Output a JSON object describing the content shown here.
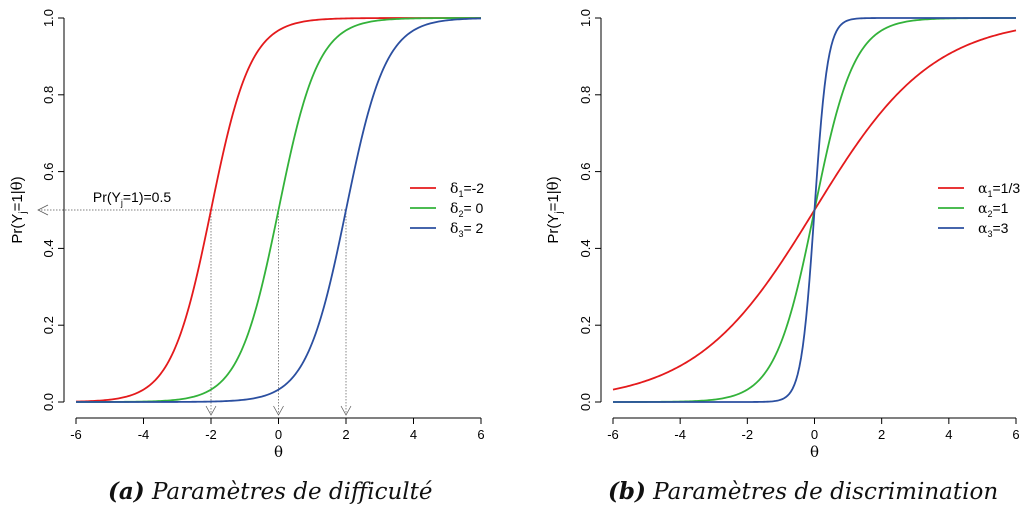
{
  "panels": [
    {
      "id": "a",
      "caption_label": "(a)",
      "caption_text": "Paramètres de difficulté",
      "annotation": "Pr(Y",
      "annotation_sub": "j",
      "annotation_tail": "=1)=0.5"
    },
    {
      "id": "b",
      "caption_label": "(b)",
      "caption_text": "Paramètres de discrimination"
    }
  ],
  "chart_data": [
    {
      "type": "line",
      "function": "logistic",
      "xlabel": "θ",
      "ylabel": "Pr(Yj=1|θ)",
      "xlim": [
        -6,
        6
      ],
      "ylim": [
        0,
        1
      ],
      "xticks": [
        -6,
        -4,
        -2,
        0,
        2,
        4,
        6
      ],
      "yticks": [
        "0.0",
        "0.2",
        "0.4",
        "0.6",
        "0.8",
        "1.0"
      ],
      "grid": false,
      "legend_position": "right",
      "reference_y": 0.5,
      "reference_x": [
        -2,
        0,
        2
      ],
      "series": [
        {
          "name": "δ1=-2",
          "sym": "δ",
          "sub": "1",
          "rest": "=-2",
          "color": "#e41a1c",
          "alpha": 1,
          "delta": -2
        },
        {
          "name": "δ2= 0",
          "sym": "δ",
          "sub": "2",
          "rest": "= 0",
          "color": "#33b23a",
          "alpha": 1,
          "delta": 0
        },
        {
          "name": "δ3= 2",
          "sym": "δ",
          "sub": "3",
          "rest": "= 2",
          "color": "#2b4fa0",
          "alpha": 1,
          "delta": 2
        }
      ]
    },
    {
      "type": "line",
      "function": "logistic",
      "xlabel": "θ",
      "ylabel": "Pr(Yj=1|θ)",
      "xlim": [
        -6,
        6
      ],
      "ylim": [
        0,
        1
      ],
      "xticks": [
        -6,
        -4,
        -2,
        0,
        2,
        4,
        6
      ],
      "yticks": [
        "0.0",
        "0.2",
        "0.4",
        "0.6",
        "0.8",
        "1.0"
      ],
      "grid": false,
      "legend_position": "right",
      "series": [
        {
          "name": "α1=1/3",
          "sym": "α",
          "sub": "1",
          "rest": "=1/3",
          "color": "#e41a1c",
          "alpha": 0.3333,
          "delta": 0
        },
        {
          "name": "α2=1",
          "sym": "α",
          "sub": "2",
          "rest": "=1",
          "color": "#33b23a",
          "alpha": 1,
          "delta": 0
        },
        {
          "name": "α3=3",
          "sym": "α",
          "sub": "3",
          "rest": "=3",
          "color": "#2b4fa0",
          "alpha": 3,
          "delta": 0
        }
      ]
    }
  ]
}
